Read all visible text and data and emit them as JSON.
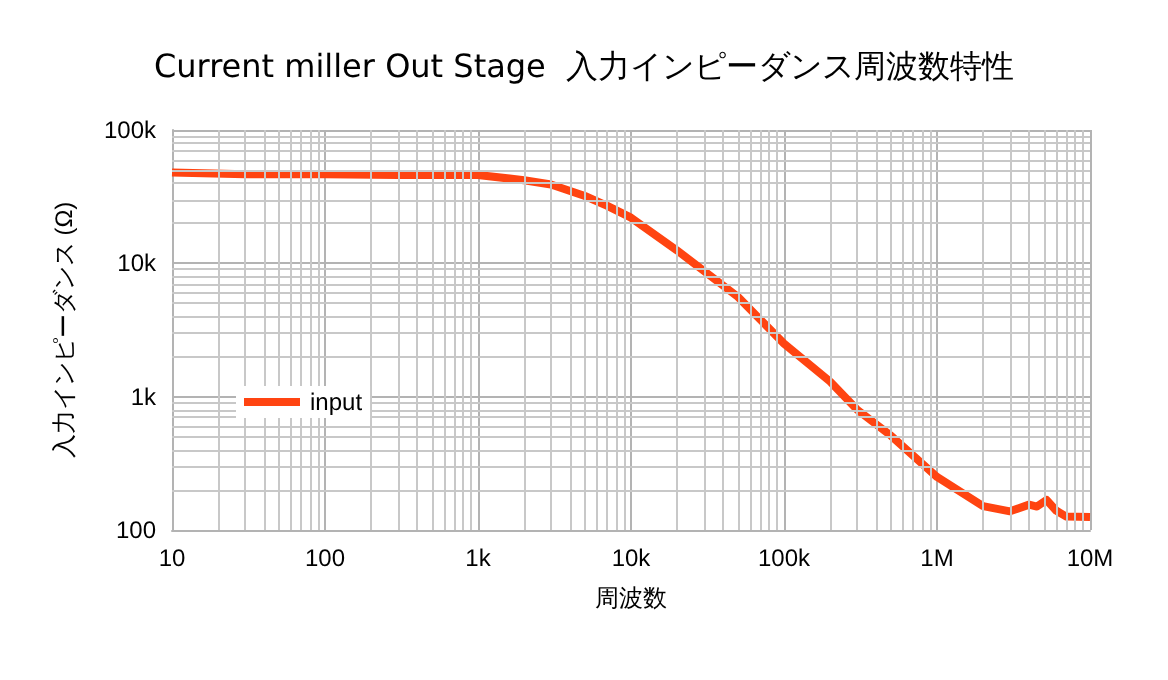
{
  "chart_data": {
    "type": "line",
    "title": "Current miller Out Stage  入力インピーダンス周波数特性",
    "xlabel": "周波数",
    "ylabel": "入力インピーダンス (Ω)",
    "log": "xy",
    "grid": true,
    "legend": "left",
    "marker": "none",
    "line_style": "solid",
    "xlim": [
      10,
      10000000
    ],
    "xticks": [
      {
        "value": 10,
        "label": "10"
      },
      {
        "value": 100,
        "label": "100"
      },
      {
        "value": 1000,
        "label": "1k"
      },
      {
        "value": 10000,
        "label": "10k"
      },
      {
        "value": 100000,
        "label": "100k"
      },
      {
        "value": 1000000,
        "label": "1M"
      },
      {
        "value": 10000000,
        "label": "10M"
      }
    ],
    "ylim": [
      100,
      100000
    ],
    "yticks": [
      {
        "value": 100,
        "label": "100"
      },
      {
        "value": 1000,
        "label": "1k"
      },
      {
        "value": 10000,
        "label": "10k"
      },
      {
        "value": 100000,
        "label": "100k"
      }
    ],
    "series": [
      {
        "name": "input",
        "color": "#ff4411",
        "x": [
          10,
          30,
          100,
          300,
          1000,
          2000,
          3000,
          5000,
          7000,
          10000,
          20000,
          50000,
          100000,
          200000,
          300000,
          500000,
          1000000,
          2000000,
          3000000,
          4000000,
          4500000,
          5200000,
          6000000,
          7000000,
          10000000
        ],
        "values": [
          48000,
          46500,
          46500,
          46000,
          46000,
          42000,
          39000,
          32000,
          27000,
          22000,
          12500,
          5600,
          2500,
          1300,
          800,
          510,
          250,
          151,
          138,
          155,
          150,
          168,
          140,
          126,
          125
        ]
      }
    ]
  }
}
